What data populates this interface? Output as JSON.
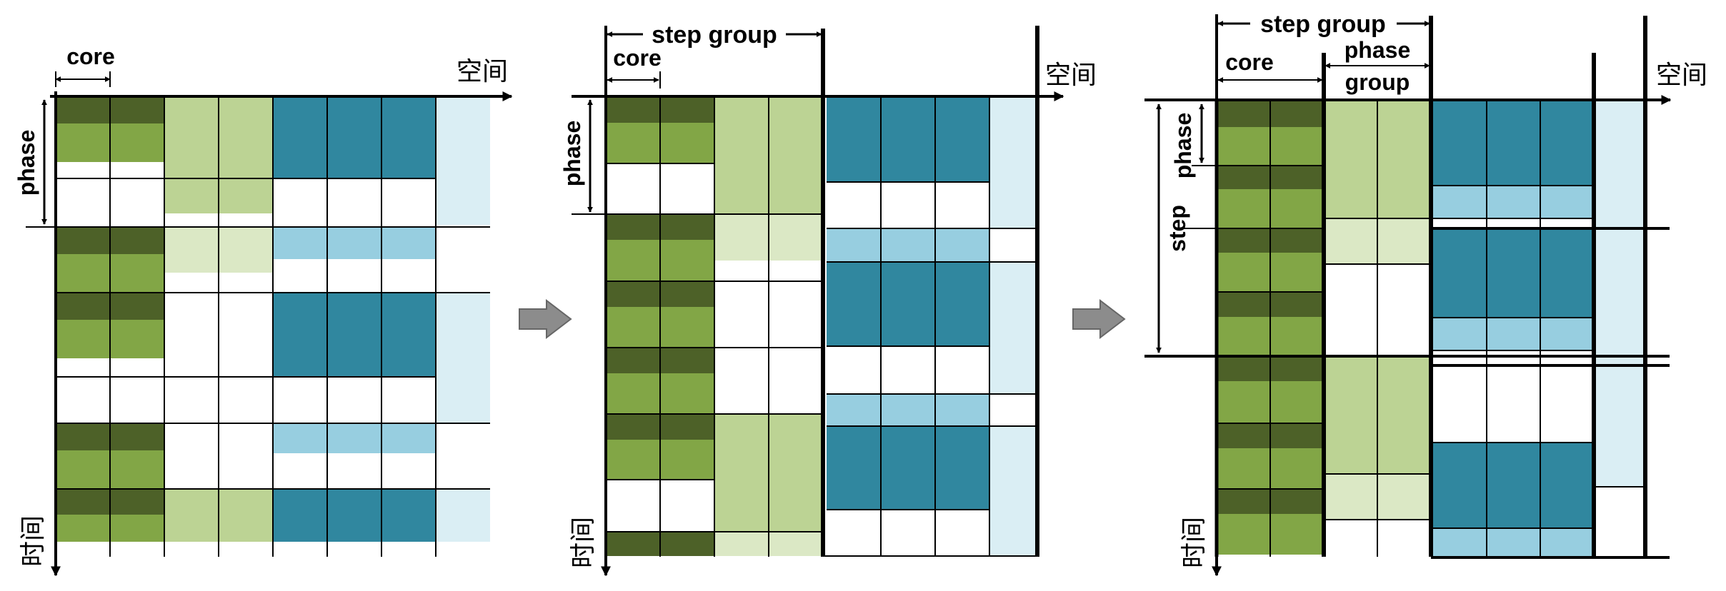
{
  "colors": {
    "dark_green": "#4d6128",
    "mid_green": "#82a646",
    "light_green": "#bcd394",
    "pale_green": "#dbe8c5",
    "teal": "#30879f",
    "light_blue": "#97cee0",
    "pale_blue": "#daeef4",
    "line": "#000000",
    "arrow_gray": "#8c8c8c"
  },
  "panel1": {
    "core_label": "core",
    "space_label": "空间",
    "phase_label": "phase",
    "time_label": "时间"
  },
  "panel2": {
    "step_group_label": "step group",
    "core_label": "core",
    "space_label": "空间",
    "phase_label": "phase",
    "time_label": "时间"
  },
  "panel3": {
    "step_group_label": "step group",
    "core_label": "core",
    "phase_group_label_1": "phase",
    "phase_group_label_2": "group",
    "space_label": "空间",
    "phase_label": "phase",
    "step_label": "step",
    "time_label": "时间"
  }
}
